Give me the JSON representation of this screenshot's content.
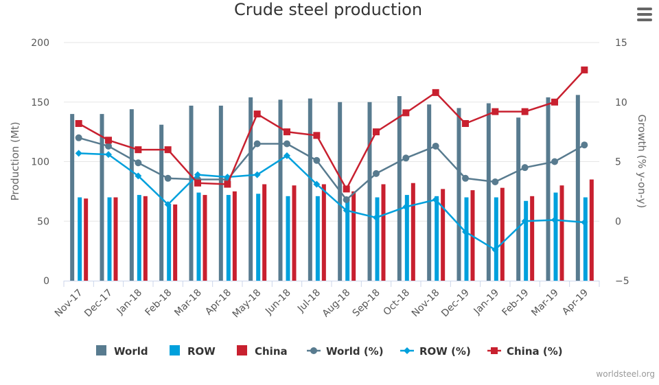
{
  "menu": {
    "icon": "hamburger-menu-icon"
  },
  "credit": "worldsteel.org",
  "chart_data": {
    "type": "bar",
    "title": "Crude steel production",
    "categories": [
      "Nov-17",
      "Dec-17",
      "Jan-18",
      "Feb-18",
      "Mar-18",
      "Apr-18",
      "May-18",
      "Jun-18",
      "Jul-18",
      "Aug-18",
      "Sep-18",
      "Oct-18",
      "Nov-18",
      "Dec-19",
      "Jan-19",
      "Feb-19",
      "Mar-19",
      "Apr-19"
    ],
    "y_left": {
      "label": "Production (Mt)",
      "min": 0,
      "max": 200,
      "ticks": [
        "0",
        "50",
        "100",
        "150",
        "200"
      ]
    },
    "y_right": {
      "label": "Growth (% y-on-y)",
      "min": -5,
      "max": 15,
      "ticks": [
        "−5",
        "0",
        "5",
        "10",
        "15"
      ]
    },
    "grid": true,
    "legend_position": "bottom",
    "series": [
      {
        "name": "World",
        "kind": "bar",
        "axis": "left",
        "color": "#587b8f",
        "values": [
          140,
          140,
          144,
          131,
          147,
          147,
          154,
          152,
          153,
          150,
          150,
          155,
          148,
          145,
          149,
          137,
          154,
          156
        ]
      },
      {
        "name": "ROW",
        "kind": "bar",
        "axis": "left",
        "color": "#00a0dc",
        "values": [
          70,
          70,
          72,
          64,
          74,
          72,
          73,
          71,
          71,
          70,
          70,
          72,
          71,
          70,
          70,
          67,
          74,
          70
        ]
      },
      {
        "name": "China",
        "kind": "bar",
        "axis": "left",
        "color": "#c8202f",
        "values": [
          69,
          70,
          71,
          64,
          72,
          75,
          81,
          80,
          81,
          75,
          81,
          82,
          77,
          76,
          78,
          71,
          80,
          85
        ]
      },
      {
        "name": "World (%)",
        "kind": "line",
        "marker": "circle",
        "axis": "right",
        "color": "#587b8f",
        "values": [
          7.0,
          6.3,
          4.9,
          3.6,
          3.5,
          3.5,
          6.5,
          6.5,
          5.1,
          1.8,
          4.0,
          5.3,
          6.3,
          3.6,
          3.3,
          4.5,
          5.0,
          6.4
        ]
      },
      {
        "name": "ROW (%)",
        "kind": "line",
        "marker": "diamond",
        "axis": "right",
        "color": "#00a0dc",
        "values": [
          5.7,
          5.6,
          3.8,
          1.4,
          3.9,
          3.7,
          3.9,
          5.5,
          3.1,
          0.9,
          0.3,
          1.2,
          1.8,
          -0.9,
          -2.4,
          0.0,
          0.1,
          -0.1
        ]
      },
      {
        "name": "China (%)",
        "kind": "line",
        "marker": "square",
        "axis": "right",
        "color": "#c8202f",
        "values": [
          8.2,
          6.8,
          6.0,
          6.0,
          3.2,
          3.1,
          9.0,
          7.5,
          7.2,
          2.7,
          7.5,
          9.1,
          10.8,
          8.2,
          9.2,
          9.2,
          10.0,
          12.7
        ]
      }
    ]
  }
}
